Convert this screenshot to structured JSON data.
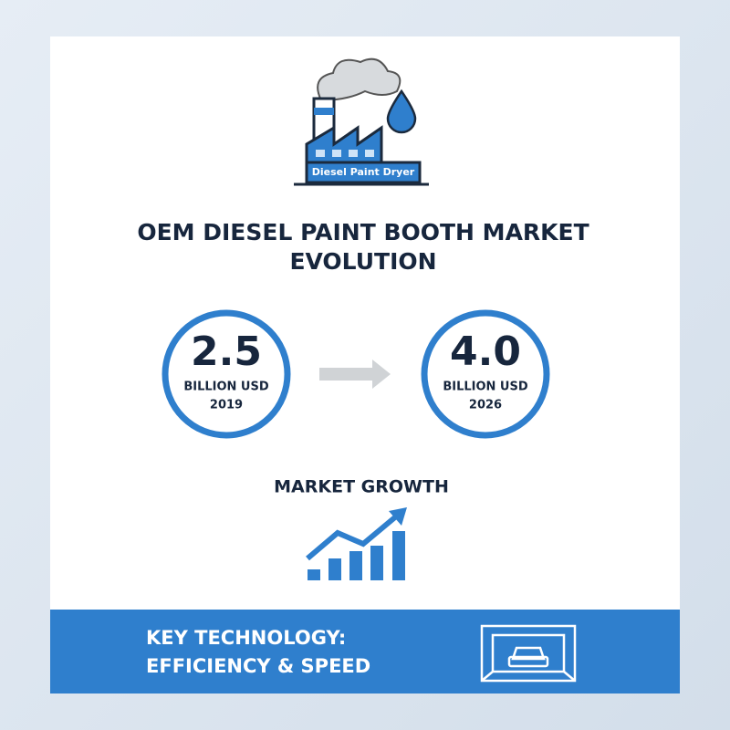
{
  "header": {
    "icon_label": "Diesel Paint Dryer",
    "title_lines": [
      "OEM DIESEL PAINT BOOTH MARKET",
      "EVOLUTION"
    ]
  },
  "stats": [
    {
      "value": "2.5",
      "unit": "BILLION USD",
      "year": "2019"
    },
    {
      "value": "4.0",
      "unit": "BILLION USD",
      "year": "2026"
    }
  ],
  "growth": {
    "label": "MARKET GROWTH"
  },
  "footer": {
    "lines": [
      "KEY TECHNOLOGY:",
      "EFFICIENCY & SPEED"
    ]
  }
}
